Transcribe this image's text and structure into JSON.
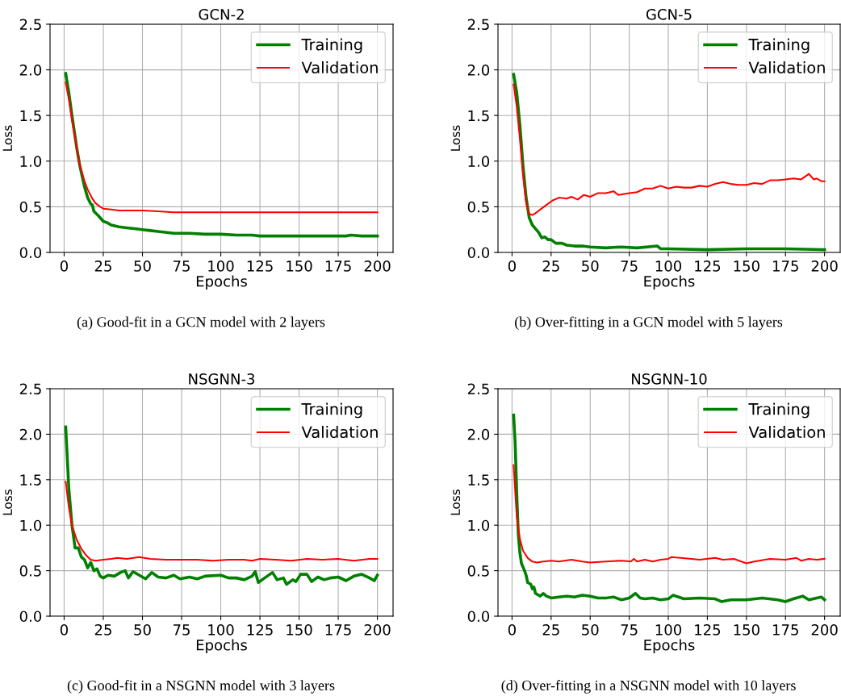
{
  "chart_data": [
    {
      "type": "line",
      "title": "GCN-2",
      "xlabel": "Epochs",
      "ylabel": "Loss",
      "xlim": [
        -9,
        210
      ],
      "ylim": [
        0,
        2.5
      ],
      "xticks": [
        0,
        25,
        50,
        75,
        100,
        125,
        150,
        175,
        200
      ],
      "yticks": [
        {
          "value": 0,
          "label": "0.0"
        },
        0.5,
        {
          "value": 1,
          "label": "1.0"
        },
        1.5,
        {
          "value": 2,
          "label": "2.0"
        },
        2.5
      ],
      "grid": true,
      "legend": "top right",
      "annotations": [
        "(a) Good-fit in a GCN model with 2 layers"
      ],
      "series": [
        {
          "name": "Training",
          "color": "#008000",
          "x": [
            1,
            3,
            5,
            8,
            10,
            13,
            15,
            17,
            18,
            19,
            22,
            25,
            27,
            30,
            35,
            40,
            45,
            50,
            55,
            60,
            70,
            80,
            90,
            100,
            110,
            120,
            125,
            140,
            150,
            160,
            170,
            180,
            183,
            190,
            200
          ],
          "values": [
            1.96,
            1.75,
            1.5,
            1.15,
            0.95,
            0.72,
            0.6,
            0.53,
            0.52,
            0.45,
            0.4,
            0.34,
            0.33,
            0.3,
            0.28,
            0.27,
            0.26,
            0.25,
            0.24,
            0.23,
            0.21,
            0.21,
            0.2,
            0.2,
            0.19,
            0.19,
            0.18,
            0.18,
            0.18,
            0.18,
            0.18,
            0.18,
            0.19,
            0.18,
            0.18
          ]
        },
        {
          "name": "Validation",
          "color": "#ff0000",
          "x": [
            1,
            3,
            5,
            8,
            10,
            13,
            15,
            18,
            20,
            23,
            25,
            30,
            35,
            45,
            50,
            60,
            70,
            80,
            100,
            125,
            150,
            175,
            200
          ],
          "values": [
            1.86,
            1.68,
            1.45,
            1.15,
            0.96,
            0.78,
            0.69,
            0.59,
            0.54,
            0.5,
            0.48,
            0.47,
            0.46,
            0.46,
            0.46,
            0.45,
            0.44,
            0.44,
            0.44,
            0.44,
            0.44,
            0.44,
            0.44
          ]
        }
      ]
    },
    {
      "type": "line",
      "title": "GCN-5",
      "xlabel": "Epochs",
      "ylabel": "Loss",
      "xlim": [
        -9,
        210
      ],
      "ylim": [
        0,
        2.5
      ],
      "xticks": [
        0,
        25,
        50,
        75,
        100,
        125,
        150,
        175,
        200
      ],
      "yticks": [
        {
          "value": 0,
          "label": "0.0"
        },
        0.5,
        {
          "value": 1,
          "label": "1.0"
        },
        1.5,
        {
          "value": 2,
          "label": "2.0"
        },
        2.5
      ],
      "grid": true,
      "legend": "top right",
      "annotations": [
        "(b) Over-fitting in a GCN model with 5 layers"
      ],
      "series": [
        {
          "name": "Training",
          "color": "#008000",
          "x": [
            1,
            3,
            5,
            7,
            9,
            11,
            13,
            15,
            17,
            19,
            21,
            23,
            25,
            28,
            32,
            35,
            40,
            45,
            50,
            60,
            70,
            80,
            93,
            95,
            100,
            125,
            150,
            175,
            200
          ],
          "values": [
            1.95,
            1.75,
            1.4,
            0.95,
            0.6,
            0.38,
            0.3,
            0.26,
            0.22,
            0.16,
            0.17,
            0.14,
            0.14,
            0.1,
            0.1,
            0.08,
            0.07,
            0.07,
            0.06,
            0.05,
            0.06,
            0.05,
            0.07,
            0.04,
            0.04,
            0.03,
            0.04,
            0.04,
            0.03
          ]
        },
        {
          "name": "Validation",
          "color": "#ff0000",
          "x": [
            1,
            3,
            5,
            7,
            9,
            11,
            13,
            15,
            18,
            22,
            26,
            30,
            35,
            38,
            42,
            46,
            50,
            55,
            60,
            65,
            68,
            75,
            80,
            85,
            90,
            95,
            100,
            105,
            110,
            115,
            120,
            125,
            130,
            135,
            140,
            145,
            150,
            155,
            160,
            165,
            170,
            175,
            180,
            185,
            190,
            193,
            195,
            198,
            200
          ],
          "values": [
            1.84,
            1.6,
            1.25,
            0.85,
            0.55,
            0.42,
            0.41,
            0.43,
            0.47,
            0.52,
            0.57,
            0.6,
            0.59,
            0.61,
            0.58,
            0.63,
            0.61,
            0.65,
            0.65,
            0.67,
            0.63,
            0.65,
            0.66,
            0.7,
            0.7,
            0.73,
            0.7,
            0.72,
            0.71,
            0.71,
            0.73,
            0.72,
            0.75,
            0.77,
            0.75,
            0.74,
            0.74,
            0.76,
            0.75,
            0.79,
            0.79,
            0.8,
            0.81,
            0.8,
            0.86,
            0.8,
            0.81,
            0.78,
            0.78
          ]
        }
      ]
    },
    {
      "type": "line",
      "title": "NSGNN-3",
      "xlabel": "Epochs",
      "ylabel": "Loss",
      "xlim": [
        -9,
        210
      ],
      "ylim": [
        0,
        2.5
      ],
      "xticks": [
        0,
        25,
        50,
        75,
        100,
        125,
        150,
        175,
        200
      ],
      "yticks": [
        {
          "value": 0,
          "label": "0.0"
        },
        0.5,
        {
          "value": 1,
          "label": "1.0"
        },
        1.5,
        {
          "value": 2,
          "label": "2.0"
        },
        2.5
      ],
      "grid": true,
      "legend": "top right",
      "annotations": [
        "(c) Good-fit in a NSGNN model with 3 layers"
      ],
      "series": [
        {
          "name": "Training",
          "color": "#008000",
          "x": [
            1,
            3,
            5,
            7,
            9,
            11,
            13,
            15,
            17,
            19,
            21,
            23,
            25,
            28,
            32,
            36,
            39,
            41,
            44,
            48,
            52,
            56,
            60,
            65,
            70,
            74,
            80,
            85,
            90,
            100,
            105,
            110,
            115,
            120,
            122,
            124,
            128,
            133,
            136,
            140,
            142,
            146,
            148,
            151,
            155,
            158,
            162,
            166,
            170,
            175,
            180,
            185,
            190,
            195,
            198,
            200
          ],
          "values": [
            2.08,
            1.4,
            1.0,
            0.75,
            0.75,
            0.65,
            0.62,
            0.53,
            0.59,
            0.5,
            0.52,
            0.44,
            0.42,
            0.45,
            0.44,
            0.48,
            0.5,
            0.42,
            0.49,
            0.45,
            0.41,
            0.48,
            0.43,
            0.42,
            0.45,
            0.41,
            0.43,
            0.41,
            0.44,
            0.45,
            0.42,
            0.42,
            0.4,
            0.44,
            0.49,
            0.37,
            0.42,
            0.48,
            0.4,
            0.42,
            0.35,
            0.4,
            0.38,
            0.46,
            0.46,
            0.38,
            0.43,
            0.4,
            0.42,
            0.43,
            0.39,
            0.44,
            0.46,
            0.42,
            0.39,
            0.45
          ]
        },
        {
          "name": "Validation",
          "color": "#ff0000",
          "x": [
            1,
            3,
            5,
            8,
            11,
            14,
            17,
            20,
            25,
            30,
            34,
            40,
            48,
            55,
            65,
            75,
            85,
            95,
            105,
            115,
            120,
            125,
            135,
            145,
            155,
            165,
            175,
            185,
            195,
            200
          ],
          "values": [
            1.48,
            1.2,
            1.0,
            0.84,
            0.74,
            0.67,
            0.62,
            0.61,
            0.62,
            0.63,
            0.64,
            0.63,
            0.65,
            0.63,
            0.62,
            0.62,
            0.62,
            0.61,
            0.62,
            0.62,
            0.61,
            0.63,
            0.62,
            0.61,
            0.63,
            0.62,
            0.63,
            0.61,
            0.63,
            0.63
          ]
        }
      ]
    },
    {
      "type": "line",
      "title": "NSGNN-10",
      "xlabel": "Epochs",
      "ylabel": "Loss",
      "xlim": [
        -9,
        210
      ],
      "ylim": [
        0,
        2.5
      ],
      "xticks": [
        0,
        25,
        50,
        75,
        100,
        125,
        150,
        175,
        200
      ],
      "yticks": [
        {
          "value": 0,
          "label": "0.0"
        },
        0.5,
        {
          "value": 1,
          "label": "1.0"
        },
        1.5,
        {
          "value": 2,
          "label": "2.0"
        },
        2.5
      ],
      "grid": true,
      "legend": "top right",
      "annotations": [
        "(d) Over-fitting in a NSGNN model with 10 layers"
      ],
      "series": [
        {
          "name": "Training",
          "color": "#008000",
          "x": [
            1,
            2,
            3,
            4,
            5,
            6,
            8,
            9,
            10,
            12,
            13,
            14,
            15,
            17,
            18,
            20,
            22,
            25,
            30,
            35,
            40,
            45,
            50,
            55,
            60,
            65,
            70,
            75,
            79,
            82,
            85,
            90,
            95,
            100,
            103,
            110,
            120,
            130,
            134,
            140,
            150,
            160,
            170,
            175,
            180,
            186,
            190,
            195,
            198,
            200
          ],
          "values": [
            2.21,
            1.9,
            1.35,
            0.9,
            0.7,
            0.58,
            0.5,
            0.45,
            0.37,
            0.35,
            0.3,
            0.32,
            0.25,
            0.23,
            0.22,
            0.25,
            0.22,
            0.2,
            0.21,
            0.22,
            0.21,
            0.23,
            0.22,
            0.2,
            0.2,
            0.21,
            0.18,
            0.2,
            0.25,
            0.2,
            0.19,
            0.2,
            0.18,
            0.19,
            0.23,
            0.19,
            0.2,
            0.19,
            0.16,
            0.18,
            0.18,
            0.2,
            0.18,
            0.16,
            0.19,
            0.22,
            0.18,
            0.2,
            0.21,
            0.18
          ]
        },
        {
          "name": "Validation",
          "color": "#ff0000",
          "x": [
            1,
            3,
            5,
            7,
            10,
            13,
            16,
            20,
            25,
            30,
            38,
            45,
            50,
            60,
            70,
            76,
            78,
            80,
            85,
            90,
            95,
            100,
            102,
            108,
            115,
            120,
            130,
            135,
            142,
            150,
            155,
            165,
            175,
            182,
            185,
            190,
            195,
            200
          ],
          "values": [
            1.66,
            1.1,
            0.85,
            0.72,
            0.64,
            0.6,
            0.59,
            0.6,
            0.61,
            0.6,
            0.62,
            0.6,
            0.59,
            0.6,
            0.61,
            0.6,
            0.63,
            0.6,
            0.62,
            0.6,
            0.62,
            0.63,
            0.65,
            0.64,
            0.63,
            0.62,
            0.64,
            0.62,
            0.63,
            0.58,
            0.6,
            0.63,
            0.62,
            0.64,
            0.61,
            0.63,
            0.62,
            0.63
          ]
        }
      ]
    }
  ]
}
